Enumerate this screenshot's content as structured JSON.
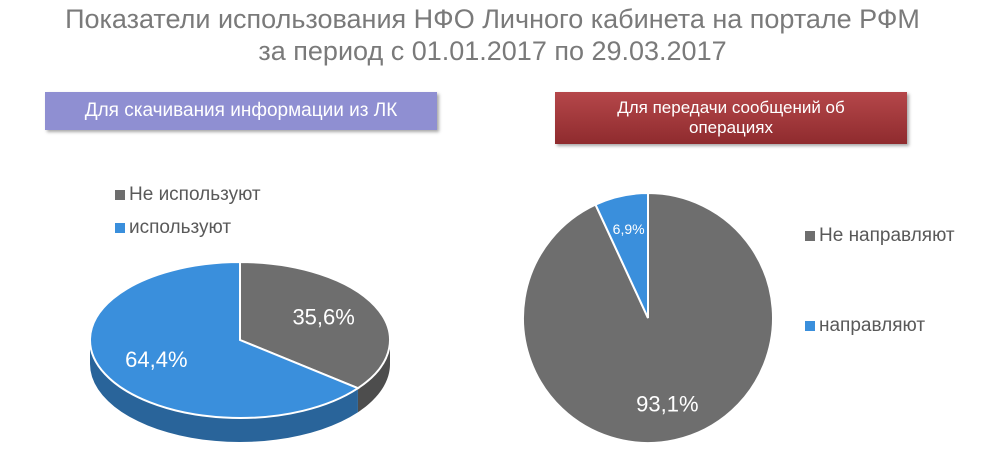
{
  "header": {
    "title_lines": [
      "Показатели использования НФО Личного кабинета на портале РФМ",
      "за период с 01.01.2017 по 29.03.2017"
    ]
  },
  "chart_data": [
    {
      "type": "pie",
      "title": "Для скачивания информации из ЛК",
      "categories": [
        "Не используют",
        "используют"
      ],
      "values": [
        35.6,
        64.4
      ],
      "value_labels": [
        "35,6%",
        "64,4%"
      ],
      "colors": [
        "#6e6e6e",
        "#3a8fdc"
      ]
    },
    {
      "type": "pie",
      "title": "Для передачи сообщений об операциях",
      "categories": [
        "Не направляют",
        "направляют"
      ],
      "values": [
        93.1,
        6.9
      ],
      "value_labels": [
        "93,1%",
        "6,9%"
      ],
      "colors": [
        "#6e6e6e",
        "#3a8fdc"
      ]
    }
  ]
}
